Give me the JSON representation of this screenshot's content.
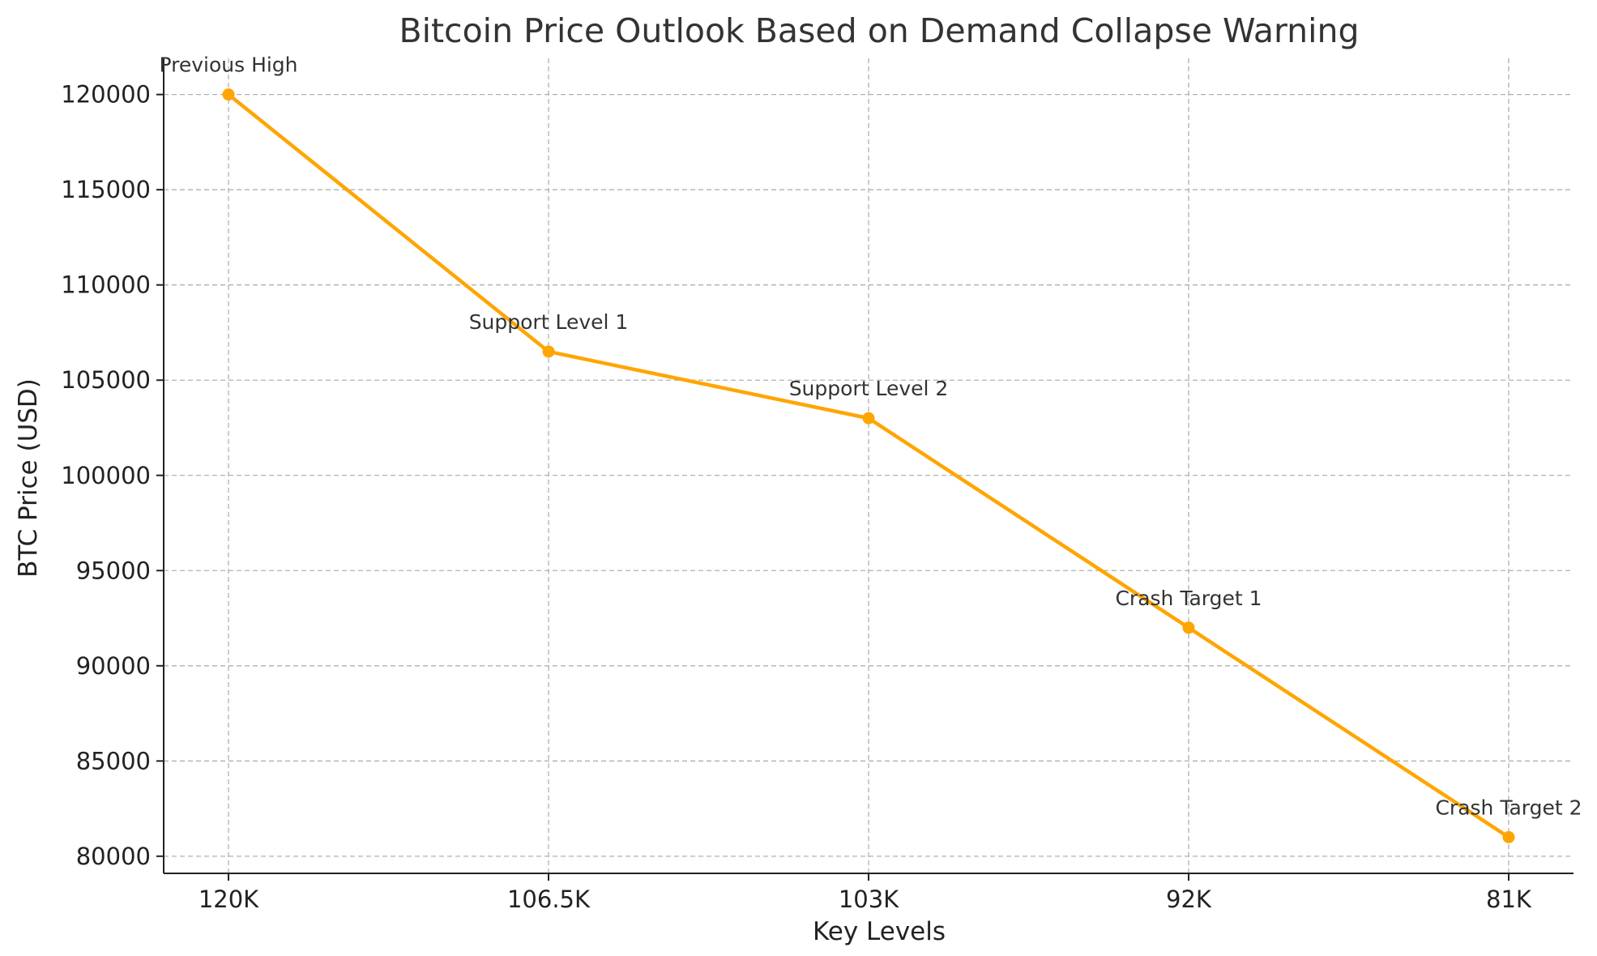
{
  "chart_data": {
    "type": "line",
    "title": "Bitcoin Price Outlook Based on Demand Collapse Warning",
    "xlabel": "Key Levels",
    "ylabel": "BTC Price (USD)",
    "categories": [
      "120K",
      "106.5K",
      "103K",
      "92K",
      "81K"
    ],
    "series": [
      {
        "values": [
          120000,
          106500,
          103000,
          92000,
          81000
        ],
        "color": "#FFA500"
      }
    ],
    "annotations": [
      "Previous High",
      "Support Level 1",
      "Support Level 2",
      "Crash Target 1",
      "Crash Target 2"
    ],
    "ylim": [
      79100,
      121900
    ],
    "yticks": [
      80000,
      85000,
      90000,
      95000,
      100000,
      105000,
      110000,
      115000,
      120000
    ],
    "grid": true,
    "grid_color": "#b0b0b0",
    "legend": "none"
  }
}
